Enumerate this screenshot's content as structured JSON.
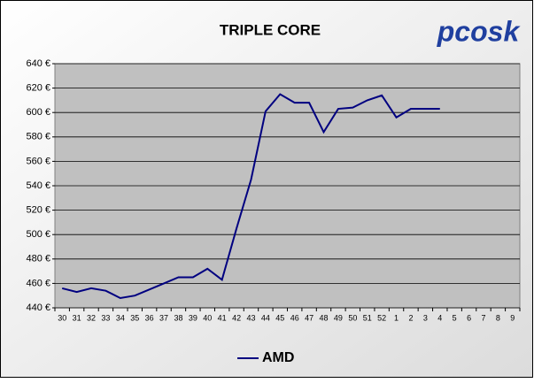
{
  "chart_data": {
    "type": "line",
    "title": "TRIPLE CORE",
    "logo": "pcosk",
    "categories": [
      "30",
      "31",
      "32",
      "33",
      "34",
      "35",
      "36",
      "37",
      "38",
      "39",
      "40",
      "41",
      "42",
      "43",
      "44",
      "45",
      "46",
      "47",
      "48",
      "49",
      "50",
      "51",
      "52",
      "1",
      "2",
      "3",
      "4",
      "5",
      "6",
      "7",
      "8",
      "9"
    ],
    "series": [
      {
        "name": "AMD",
        "color": "#000080",
        "values": [
          456,
          453,
          456,
          454,
          448,
          450,
          455,
          460,
          465,
          465,
          472,
          463,
          505,
          545,
          601,
          615,
          608,
          608,
          584,
          603,
          604,
          610,
          614,
          596,
          603,
          603,
          603,
          null,
          null,
          null,
          null,
          null
        ]
      }
    ],
    "ylim": [
      440,
      640
    ],
    "yticks": [
      {
        "value": 440,
        "label": "440 €"
      },
      {
        "value": 460,
        "label": "460 €"
      },
      {
        "value": 480,
        "label": "480 €"
      },
      {
        "value": 500,
        "label": "500 €"
      },
      {
        "value": 520,
        "label": "520 €"
      },
      {
        "value": 540,
        "label": "540 €"
      },
      {
        "value": 560,
        "label": "560 €"
      },
      {
        "value": 580,
        "label": "580 €"
      },
      {
        "value": 600,
        "label": "600 €"
      },
      {
        "value": 620,
        "label": "620 €"
      },
      {
        "value": 640,
        "label": "640 €"
      }
    ],
    "grid": true,
    "legend": "bottom"
  }
}
